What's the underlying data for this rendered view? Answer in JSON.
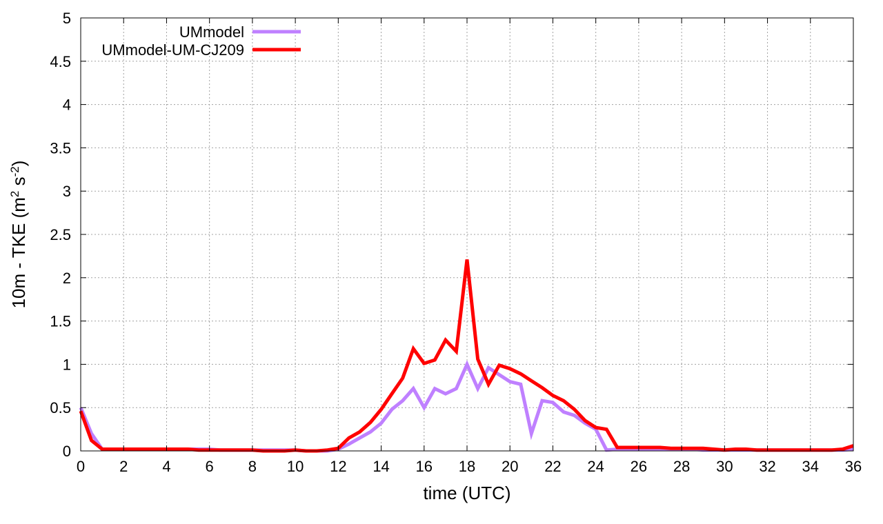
{
  "chart_data": {
    "type": "line",
    "title": "",
    "xlabel": "time (UTC)",
    "ylabel": "10m - TKE (m² s⁻²)",
    "ylabel_parts": {
      "base": "10m - TKE (m",
      "exp1": "2",
      "mid": " s",
      "exp2": "-2",
      "end": ")"
    },
    "xlim": [
      0,
      36
    ],
    "ylim": [
      0,
      5
    ],
    "xticks": [
      "0",
      "2",
      "4",
      "6",
      "8",
      "10",
      "12",
      "14",
      "16",
      "18",
      "20",
      "22",
      "24",
      "26",
      "28",
      "30",
      "32",
      "34",
      "36"
    ],
    "yticks": [
      "0",
      "0.5",
      "1",
      "1.5",
      "2",
      "2.5",
      "3",
      "3.5",
      "4",
      "4.5",
      "5"
    ],
    "grid": true,
    "legend_position": "top-left",
    "series": [
      {
        "name": "UMmodel",
        "color": "#bf80ff",
        "x": [
          0,
          0.5,
          1,
          1.5,
          2,
          2.5,
          3,
          3.5,
          4,
          4.5,
          5,
          5.5,
          6,
          6.5,
          7,
          7.5,
          8,
          8.5,
          9,
          9.5,
          10,
          10.5,
          11,
          11.5,
          12,
          12.5,
          13,
          13.5,
          14,
          14.5,
          15,
          15.5,
          16,
          16.5,
          17,
          17.5,
          18,
          18.5,
          19,
          19.5,
          20,
          20.5,
          21,
          21.5,
          22,
          22.5,
          23,
          23.5,
          24,
          24.5,
          25,
          25.5,
          26,
          26.5,
          27,
          27.5,
          28,
          28.5,
          29,
          29.5,
          30,
          30.5,
          31,
          31.5,
          32,
          32.5,
          33,
          33.5,
          34,
          34.5,
          35,
          35.5,
          36
        ],
        "values": [
          0.5,
          0.2,
          0.02,
          0.02,
          0.02,
          0.02,
          0.02,
          0.02,
          0.02,
          0.02,
          0.02,
          0.02,
          0.02,
          0.01,
          0.01,
          0.01,
          0.01,
          0.01,
          0.01,
          0.01,
          0.01,
          0.0,
          0.0,
          0.0,
          0.02,
          0.08,
          0.15,
          0.22,
          0.32,
          0.48,
          0.58,
          0.72,
          0.5,
          0.72,
          0.66,
          0.72,
          1.0,
          0.72,
          0.96,
          0.88,
          0.8,
          0.77,
          0.2,
          0.58,
          0.56,
          0.45,
          0.41,
          0.32,
          0.25,
          0.01,
          0.02,
          0.02,
          0.02,
          0.02,
          0.02,
          0.02,
          0.02,
          0.02,
          0.01,
          0.01,
          0.01,
          0.01,
          0.01,
          0.01,
          0.01,
          0.01,
          0.01,
          0.01,
          0.01,
          0.01,
          0.01,
          0.01,
          0.02
        ]
      },
      {
        "name": "UMmodel-UM-CJ209",
        "color": "#ff0000",
        "x": [
          0,
          0.5,
          1,
          1.5,
          2,
          2.5,
          3,
          3.5,
          4,
          4.5,
          5,
          5.5,
          6,
          6.5,
          7,
          7.5,
          8,
          8.5,
          9,
          9.5,
          10,
          10.5,
          11,
          11.5,
          12,
          12.5,
          13,
          13.5,
          14,
          14.5,
          15,
          15.5,
          16,
          16.5,
          17,
          17.5,
          18,
          18.5,
          19,
          19.5,
          20,
          20.5,
          21,
          21.5,
          22,
          22.5,
          23,
          23.5,
          24,
          24.5,
          25,
          25.5,
          26,
          26.5,
          27,
          27.5,
          28,
          28.5,
          29,
          29.5,
          30,
          30.5,
          31,
          31.5,
          32,
          32.5,
          33,
          33.5,
          34,
          34.5,
          35,
          35.5,
          36
        ],
        "values": [
          0.46,
          0.12,
          0.02,
          0.02,
          0.02,
          0.02,
          0.02,
          0.02,
          0.02,
          0.02,
          0.02,
          0.01,
          0.01,
          0.01,
          0.01,
          0.01,
          0.01,
          0.0,
          0.0,
          0.0,
          0.01,
          0.0,
          0.0,
          0.01,
          0.03,
          0.15,
          0.22,
          0.33,
          0.48,
          0.66,
          0.84,
          1.18,
          1.01,
          1.05,
          1.28,
          1.15,
          2.21,
          1.06,
          0.77,
          0.99,
          0.95,
          0.89,
          0.81,
          0.73,
          0.64,
          0.58,
          0.48,
          0.35,
          0.27,
          0.25,
          0.04,
          0.04,
          0.04,
          0.04,
          0.04,
          0.03,
          0.03,
          0.03,
          0.03,
          0.02,
          0.01,
          0.02,
          0.02,
          0.01,
          0.01,
          0.01,
          0.01,
          0.01,
          0.01,
          0.01,
          0.01,
          0.02,
          0.06
        ]
      }
    ]
  }
}
